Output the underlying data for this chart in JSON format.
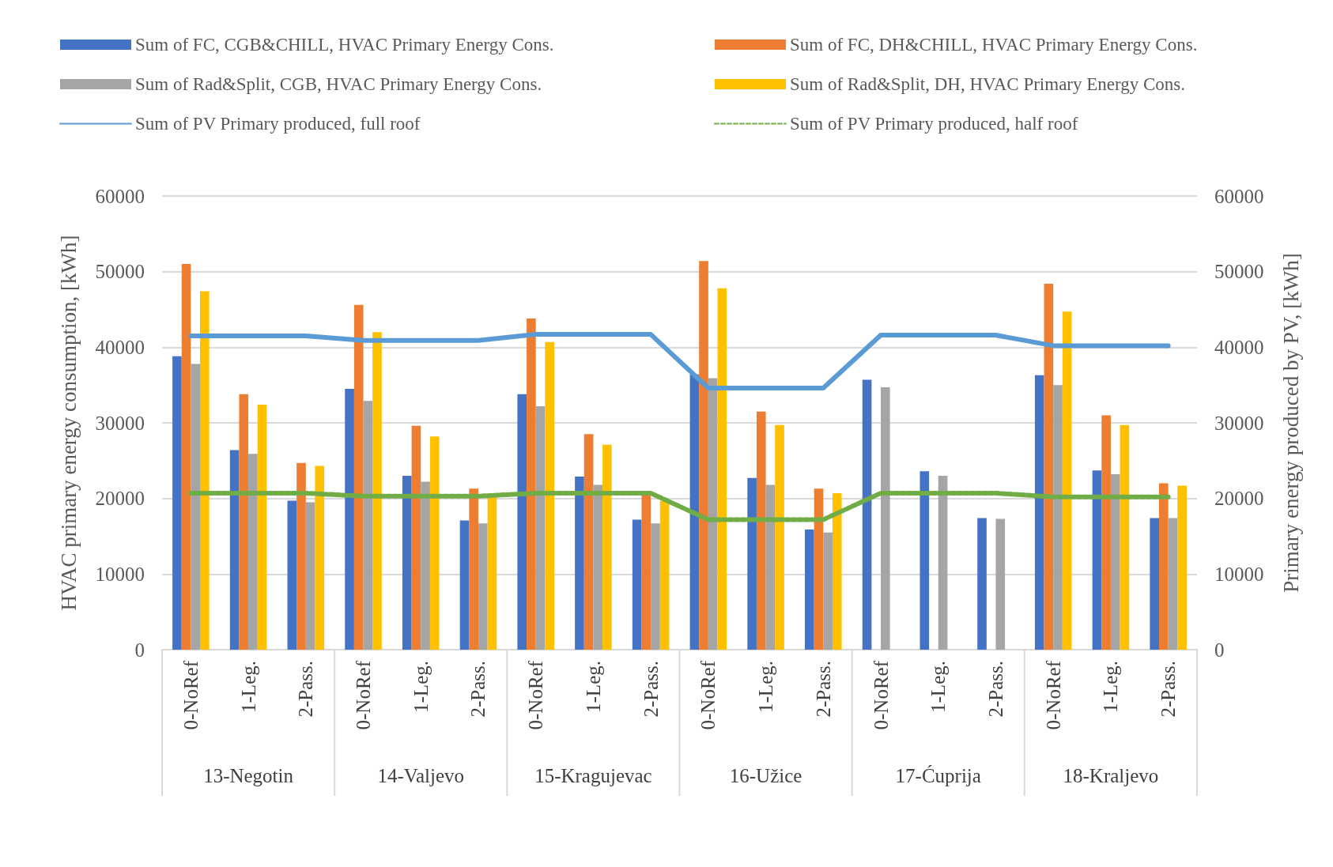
{
  "chart_data": {
    "type": "bar",
    "categories": [
      "0-NoRef",
      "1-Leg.",
      "2-Pass.",
      "0-NoRef",
      "1-Leg.",
      "2-Pass.",
      "0-NoRef",
      "1-Leg.",
      "2-Pass.",
      "0-NoRef",
      "1-Leg.",
      "2-Pass.",
      "0-NoRef",
      "1-Leg.",
      "2-Pass.",
      "0-NoRef",
      "1-Leg.",
      "2-Pass."
    ],
    "annotations": [
      "13-Negotin",
      "14-Valjevo",
      "15-Kragujevac",
      "16-Užice",
      "17-Ćuprija",
      "18-Kraljevo"
    ],
    "ylabel": "HVAC primary energy consumption, [kWh]",
    "y2label": "Primary energy produced by PV, [kWh]",
    "ylim": [
      0,
      60000
    ],
    "yticks": [
      0,
      10000,
      20000,
      30000,
      40000,
      50000,
      60000
    ],
    "y2lim": [
      0,
      60000
    ],
    "y2ticks": [
      0,
      10000,
      20000,
      30000,
      40000,
      50000,
      60000
    ],
    "grid": "y",
    "legend": "top",
    "marker": "none",
    "series": [
      {
        "name": "Sum of FC, CGB&CHILL, HVAC Primary Energy Cons.",
        "color": "#4472c4",
        "values": [
          38800,
          26400,
          19700,
          34500,
          23000,
          17100,
          33800,
          22900,
          17200,
          36400,
          22700,
          15900,
          35700,
          23600,
          17400,
          36300,
          23700,
          17400
        ]
      },
      {
        "name": "Sum of FC, DH&CHILL, HVAC Primary Energy Cons.",
        "color": "#ed7d31",
        "values": [
          51000,
          33800,
          24700,
          45600,
          29600,
          21300,
          43800,
          28500,
          20700,
          51400,
          31500,
          21300,
          null,
          null,
          null,
          48400,
          31000,
          22000
        ]
      },
      {
        "name": "Sum of Rad&Split, CGB, HVAC Primary Energy Cons.",
        "color": "#a5a5a5",
        "values": [
          37800,
          25900,
          19500,
          32900,
          22200,
          16700,
          32200,
          21800,
          16700,
          35900,
          21800,
          15500,
          34700,
          23000,
          17300,
          35000,
          23200,
          17400
        ]
      },
      {
        "name": "Sum of Rad&Split, DH, HVAC Primary Energy Cons.",
        "color": "#ffc000",
        "values": [
          47400,
          32400,
          24300,
          42000,
          28200,
          20700,
          40700,
          27100,
          19700,
          47800,
          29700,
          20700,
          null,
          null,
          null,
          44700,
          29700,
          21700
        ]
      },
      {
        "name": "Sum of PV Primary produced, full roof",
        "type": "line",
        "axis": "y2",
        "line_style": "solid",
        "color": "#5b9bd5",
        "values": [
          41500,
          41500,
          41500,
          40900,
          40900,
          40900,
          41700,
          41700,
          41700,
          34600,
          34600,
          34600,
          41600,
          41600,
          41600,
          40200,
          40200,
          40200
        ]
      },
      {
        "name": "Sum of PV Primary produced, half roof",
        "type": "line",
        "axis": "y2",
        "line_style": "dashed",
        "color": "#70ad47",
        "values": [
          20700,
          20700,
          20700,
          20300,
          20300,
          20300,
          20700,
          20700,
          20700,
          17200,
          17200,
          17200,
          20700,
          20700,
          20700,
          20200,
          20200,
          20200
        ]
      }
    ]
  }
}
